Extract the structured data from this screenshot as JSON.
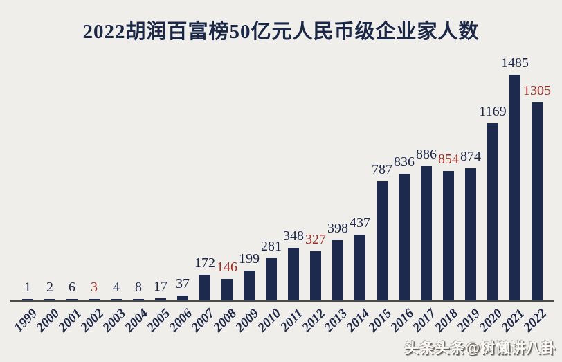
{
  "title": "2022胡润百富榜50亿元人民币级企业家人数",
  "watermark": "头条头条@树懒讲八卦",
  "chart_data": {
    "type": "bar",
    "title": "2022胡润百富榜50亿元人民币级企业家人数",
    "categories": [
      "1999",
      "2000",
      "2001",
      "2002",
      "2003",
      "2004",
      "2005",
      "2006",
      "2007",
      "2008",
      "2009",
      "2010",
      "2011",
      "2012",
      "2013",
      "2014",
      "2015",
      "2016",
      "2017",
      "2018",
      "2019",
      "2020",
      "2021",
      "2022"
    ],
    "values": [
      1,
      2,
      6,
      3,
      4,
      8,
      17,
      37,
      172,
      146,
      199,
      281,
      348,
      327,
      398,
      437,
      787,
      836,
      886,
      854,
      874,
      1169,
      1485,
      1305
    ],
    "highlighted_categories": [
      "2002",
      "2008",
      "2012",
      "2018",
      "2022"
    ],
    "xlabel": "",
    "ylabel": "",
    "ylim": [
      0,
      1500
    ],
    "grid": false,
    "legend": null,
    "value_labels": true,
    "x_tick_rotation_deg": 45,
    "colors": {
      "background": "#f0eeea",
      "bar": "#1d2a4d",
      "value_label": "#1c2748",
      "highlight_value_label": "#9d2d24",
      "title": "#1b2747",
      "axis_line": "#4a4a48",
      "year_label": "#1c2748"
    }
  }
}
